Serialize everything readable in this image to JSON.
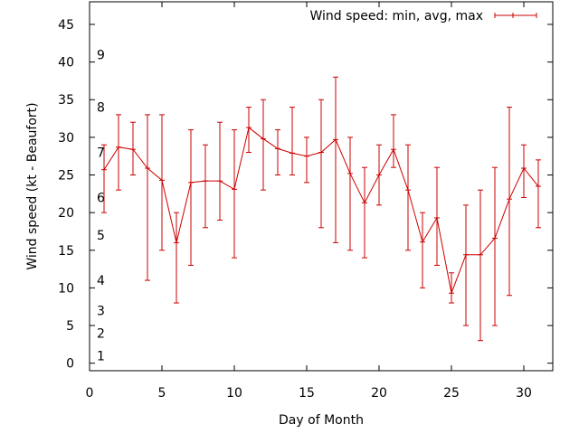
{
  "chart_data": {
    "type": "line",
    "title": "",
    "xlabel": "Day of Month",
    "ylabel": "Wind speed (kt - Beaufort)",
    "xlim": [
      0,
      32
    ],
    "ylim": [
      -1,
      48
    ],
    "xticks": [
      0,
      5,
      10,
      15,
      20,
      25,
      30
    ],
    "yticks": [
      0,
      5,
      10,
      15,
      20,
      25,
      30,
      35,
      40,
      45
    ],
    "grid": false,
    "legend_position": "top-right",
    "series": [
      {
        "name": "Wind speed: min, avg, max",
        "color": "#cc0000",
        "style": "line-with-error-bars",
        "points": [
          {
            "x": 1,
            "min": 20,
            "avg": 25.7,
            "max": 29
          },
          {
            "x": 2,
            "min": 23,
            "avg": 28.7,
            "max": 33
          },
          {
            "x": 3,
            "min": 25,
            "avg": 28.4,
            "max": 32
          },
          {
            "x": 4,
            "min": 11,
            "avg": 25.9,
            "max": 33
          },
          {
            "x": 5,
            "min": 15,
            "avg": 24.3,
            "max": 33
          },
          {
            "x": 6,
            "min": 8,
            "avg": 16.0,
            "max": 20
          },
          {
            "x": 7,
            "min": 13,
            "avg": 24.0,
            "max": 31
          },
          {
            "x": 8,
            "min": 18,
            "avg": 24.2,
            "max": 29
          },
          {
            "x": 9,
            "min": 19,
            "avg": 24.2,
            "max": 32
          },
          {
            "x": 10,
            "min": 14,
            "avg": 23.1,
            "max": 31
          },
          {
            "x": 11,
            "min": 28,
            "avg": 31.3,
            "max": 34
          },
          {
            "x": 12,
            "min": 23,
            "avg": 29.8,
            "max": 35
          },
          {
            "x": 13,
            "min": 25,
            "avg": 28.5,
            "max": 31
          },
          {
            "x": 14,
            "min": 25,
            "avg": 27.9,
            "max": 34
          },
          {
            "x": 15,
            "min": 24,
            "avg": 27.5,
            "max": 30
          },
          {
            "x": 16,
            "min": 18,
            "avg": 28.0,
            "max": 35
          },
          {
            "x": 17,
            "min": 16,
            "avg": 29.7,
            "max": 38
          },
          {
            "x": 18,
            "min": 15,
            "avg": 25.2,
            "max": 30
          },
          {
            "x": 19,
            "min": 14,
            "avg": 21.3,
            "max": 26
          },
          {
            "x": 20,
            "min": 21,
            "avg": 25.0,
            "max": 29
          },
          {
            "x": 21,
            "min": 26,
            "avg": 28.4,
            "max": 33
          },
          {
            "x": 22,
            "min": 15,
            "avg": 23.0,
            "max": 29
          },
          {
            "x": 23,
            "min": 10,
            "avg": 16.1,
            "max": 20
          },
          {
            "x": 24,
            "min": 13,
            "avg": 19.3,
            "max": 26
          },
          {
            "x": 25,
            "min": 8,
            "avg": 9.3,
            "max": 12
          },
          {
            "x": 26,
            "min": 5,
            "avg": 14.4,
            "max": 21
          },
          {
            "x": 27,
            "min": 3,
            "avg": 14.4,
            "max": 23
          },
          {
            "x": 28,
            "min": 5,
            "avg": 16.6,
            "max": 26
          },
          {
            "x": 29,
            "min": 9,
            "avg": 21.8,
            "max": 34
          },
          {
            "x": 30,
            "min": 22,
            "avg": 25.9,
            "max": 29
          },
          {
            "x": 31,
            "min": 18,
            "avg": 23.5,
            "max": 27
          }
        ]
      }
    ],
    "beaufort_labels": [
      {
        "label": "1",
        "y": 1
      },
      {
        "label": "2",
        "y": 4
      },
      {
        "label": "3",
        "y": 7
      },
      {
        "label": "4",
        "y": 11
      },
      {
        "label": "5",
        "y": 17
      },
      {
        "label": "6",
        "y": 22
      },
      {
        "label": "7",
        "y": 28
      },
      {
        "label": "8",
        "y": 34
      },
      {
        "label": "9",
        "y": 41
      }
    ]
  }
}
